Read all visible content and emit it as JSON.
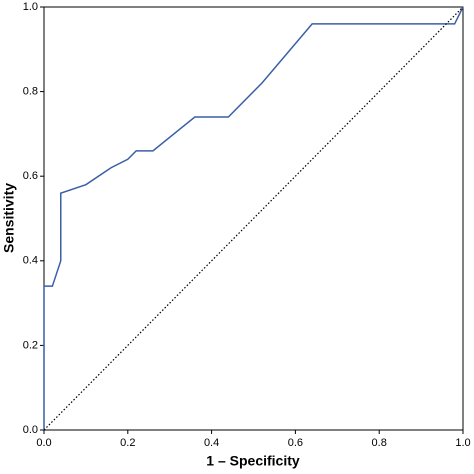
{
  "chart_data": {
    "type": "line",
    "xlabel": "1 – Specificity",
    "ylabel": "Sensitivity",
    "xlim": [
      0,
      1
    ],
    "ylim": [
      0,
      1
    ],
    "xticks": [
      {
        "value": 0,
        "label": "0.0"
      },
      0.2,
      0.4,
      0.6,
      0.8,
      {
        "value": 1,
        "label": "1.0"
      }
    ],
    "yticks": [
      {
        "value": 0,
        "label": "0.0"
      },
      0.2,
      0.4,
      0.6,
      0.8,
      {
        "value": 1,
        "label": "1.0"
      }
    ],
    "grid": false,
    "series": [
      {
        "color": "#3a5fa8",
        "style": "solid",
        "x": [
          0,
          0,
          0.02,
          0.04,
          0.04,
          0.1,
          0.16,
          0.2,
          0.22,
          0.26,
          0.36,
          0.44,
          0.52,
          0.64,
          0.98,
          1.0
        ],
        "values": [
          0,
          0.34,
          0.34,
          0.4,
          0.56,
          0.58,
          0.62,
          0.64,
          0.66,
          0.66,
          0.74,
          0.74,
          0.82,
          0.96,
          0.96,
          1.0
        ]
      },
      {
        "color": "#000000",
        "style": "dotted",
        "x": [
          0,
          1
        ],
        "values": [
          0,
          1
        ]
      }
    ]
  }
}
